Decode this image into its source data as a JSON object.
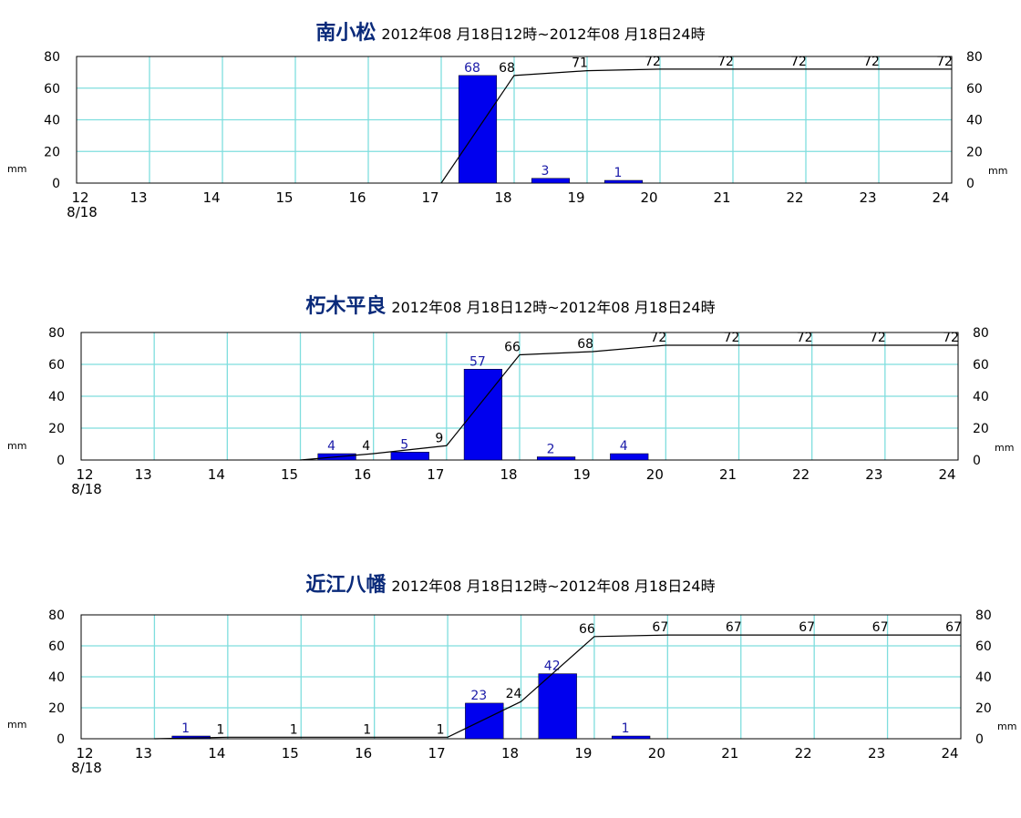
{
  "chart_data": [
    {
      "type": "bar",
      "title": "南小松",
      "subtitle": "2012年08 月18日12時~2012年08 月18日24時",
      "x_ticks": [
        "12",
        "13",
        "14",
        "15",
        "16",
        "17",
        "18",
        "19",
        "20",
        "21",
        "22",
        "23",
        "24"
      ],
      "x_sublabel": "8/18",
      "y_ticks": [
        "0",
        "20",
        "40",
        "60",
        "80"
      ],
      "ylabel_left": "mm",
      "ylabel_right": "mm",
      "ylim": [
        0,
        80
      ],
      "grid": true,
      "series": [
        {
          "kind": "bar",
          "color": "#0000ee",
          "points": [
            {
              "hour": 17.5,
              "value": 68
            },
            {
              "hour": 18.5,
              "value": 3
            },
            {
              "hour": 19.5,
              "value": 1
            }
          ],
          "labels": [
            "68",
            "3",
            "1"
          ]
        },
        {
          "kind": "line",
          "color": "#000000",
          "points": [
            {
              "hour": 17,
              "value": 0
            },
            {
              "hour": 18,
              "value": 68
            },
            {
              "hour": 19,
              "value": 71
            },
            {
              "hour": 20,
              "value": 72
            },
            {
              "hour": 21,
              "value": 72
            },
            {
              "hour": 22,
              "value": 72
            },
            {
              "hour": 23,
              "value": 72
            },
            {
              "hour": 24,
              "value": 72
            }
          ],
          "labels": [
            "",
            "68",
            "71",
            "72",
            "72",
            "72",
            "72",
            "72"
          ]
        }
      ]
    },
    {
      "type": "bar",
      "title": "朽木平良",
      "subtitle": "2012年08 月18日12時~2012年08 月18日24時",
      "x_ticks": [
        "12",
        "13",
        "14",
        "15",
        "16",
        "17",
        "18",
        "19",
        "20",
        "21",
        "22",
        "23",
        "24"
      ],
      "x_sublabel": "8/18",
      "y_ticks": [
        "0",
        "20",
        "40",
        "60",
        "80"
      ],
      "ylabel_left": "mm",
      "ylabel_right": "mm",
      "ylim": [
        0,
        80
      ],
      "grid": true,
      "series": [
        {
          "kind": "bar",
          "color": "#0000ee",
          "points": [
            {
              "hour": 15.5,
              "value": 4
            },
            {
              "hour": 16.5,
              "value": 5
            },
            {
              "hour": 17.5,
              "value": 57
            },
            {
              "hour": 18.5,
              "value": 2
            },
            {
              "hour": 19.5,
              "value": 4
            }
          ],
          "labels": [
            "4",
            "5",
            "57",
            "2",
            "4"
          ]
        },
        {
          "kind": "line",
          "color": "#000000",
          "points": [
            {
              "hour": 15,
              "value": 0
            },
            {
              "hour": 16,
              "value": 4
            },
            {
              "hour": 17,
              "value": 9
            },
            {
              "hour": 18,
              "value": 66
            },
            {
              "hour": 19,
              "value": 68
            },
            {
              "hour": 20,
              "value": 72
            },
            {
              "hour": 21,
              "value": 72
            },
            {
              "hour": 22,
              "value": 72
            },
            {
              "hour": 23,
              "value": 72
            },
            {
              "hour": 24,
              "value": 72
            }
          ],
          "labels": [
            "",
            "4",
            "9",
            "66",
            "68",
            "72",
            "72",
            "72",
            "72",
            "72"
          ]
        }
      ]
    },
    {
      "type": "bar",
      "title": "近江八幡",
      "subtitle": "2012年08 月18日12時~2012年08 月18日24時",
      "x_ticks": [
        "12",
        "13",
        "14",
        "15",
        "16",
        "17",
        "18",
        "19",
        "20",
        "21",
        "22",
        "23",
        "24"
      ],
      "x_sublabel": "8/18",
      "y_ticks": [
        "0",
        "20",
        "40",
        "60",
        "80"
      ],
      "ylabel_left": "mm",
      "ylabel_right": "mm",
      "ylim": [
        0,
        80
      ],
      "grid": true,
      "series": [
        {
          "kind": "bar",
          "color": "#0000ee",
          "points": [
            {
              "hour": 13.5,
              "value": 1
            },
            {
              "hour": 17.5,
              "value": 23
            },
            {
              "hour": 18.5,
              "value": 42
            },
            {
              "hour": 19.5,
              "value": 1
            }
          ],
          "labels": [
            "1",
            "23",
            "42",
            "1"
          ]
        },
        {
          "kind": "line",
          "color": "#000000",
          "points": [
            {
              "hour": 13,
              "value": 0
            },
            {
              "hour": 14,
              "value": 1
            },
            {
              "hour": 15,
              "value": 1
            },
            {
              "hour": 16,
              "value": 1
            },
            {
              "hour": 17,
              "value": 1
            },
            {
              "hour": 18,
              "value": 24
            },
            {
              "hour": 19,
              "value": 66
            },
            {
              "hour": 20,
              "value": 67
            },
            {
              "hour": 21,
              "value": 67
            },
            {
              "hour": 22,
              "value": 67
            },
            {
              "hour": 23,
              "value": 67
            },
            {
              "hour": 24,
              "value": 67
            }
          ],
          "labels": [
            "",
            "1",
            "1",
            "1",
            "1",
            "24",
            "66",
            "67",
            "67",
            "67",
            "67",
            "67"
          ]
        }
      ]
    }
  ]
}
